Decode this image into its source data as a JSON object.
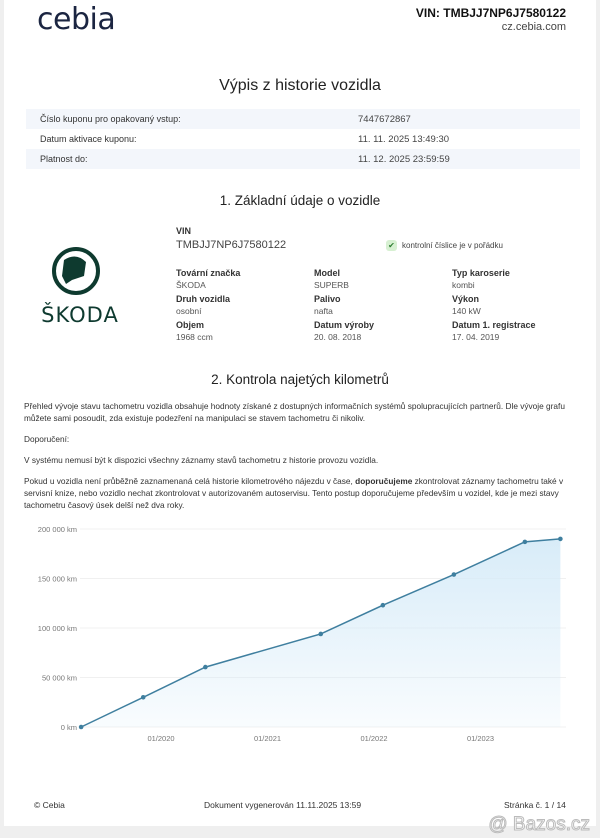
{
  "header": {
    "logo": "cebia",
    "vin": "VIN: TMBJJ7NP6J7580122",
    "site": "cz.cebia.com"
  },
  "title": "Výpis z historie vozidla",
  "coupon": [
    {
      "label": "Číslo kuponu pro opakovaný vstup:",
      "value": "7447672867"
    },
    {
      "label": "Datum aktivace kuponu:",
      "value": "11. 11. 2025 13:49:30"
    },
    {
      "label": "Platnost do:",
      "value": "11. 12. 2025 23:59:59"
    }
  ],
  "section1": {
    "title": "1. Základní údaje o vozidle",
    "brand_logo": "ŠKODA",
    "vin_label": "VIN",
    "vin": "TMBJJ7NP6J7580122",
    "check_text": "kontrolní číslice je v pořádku",
    "check_color": "#4caf50",
    "fields": [
      {
        "label": "Tovární značka",
        "value": "ŠKODA"
      },
      {
        "label": "Model",
        "value": "SUPERB"
      },
      {
        "label": "Typ karoserie",
        "value": "kombi"
      },
      {
        "label": "Druh vozidla",
        "value": "osobní"
      },
      {
        "label": "Palivo",
        "value": "nafta"
      },
      {
        "label": "Výkon",
        "value": "140 kW"
      },
      {
        "label": "Objem",
        "value": "1968 ccm"
      },
      {
        "label": "Datum výroby",
        "value": "20. 08. 2018"
      },
      {
        "label": "Datum 1. registrace",
        "value": "17. 04. 2019"
      }
    ]
  },
  "section2": {
    "title": "2. Kontrola najetých kilometrů",
    "p1": "Přehled vývoje stavu tachometru vozidla obsahuje hodnoty získané z dostupných informačních systémů spolupracujících partnerů. Dle vývoje grafu můžete sami posoudit, zda existuje podezření na manipulaci se stavem tachometru či nikoliv.",
    "rec_label": "Doporučení:",
    "p2": "V systému nemusí být k dispozici všechny záznamy stavů tachometru z historie provozu vozidla.",
    "p3a": "Pokud u vozidla není průběžně zaznamenaná celá historie kilometrového nájezdu v čase, ",
    "p3b": "doporučujeme",
    "p3c": " zkontrolovat záznamy tachometru také v servisní knize, nebo vozidlo nechat zkontrolovat v autorizovaném autoservisu. Tento postup doporučujeme především u vozidel, kde je mezi stavy tachometru časový úsek delší než dva roky."
  },
  "chart_data": {
    "type": "area",
    "x": [
      "2019-04",
      "2019-11",
      "2020-06",
      "2021-07",
      "2022-02",
      "2022-10",
      "2023-06",
      "2023-10"
    ],
    "values": [
      0,
      30000,
      60500,
      94000,
      123000,
      154000,
      187000,
      190000
    ],
    "ylim": [
      0,
      200000
    ],
    "yticks": [
      "0 km",
      "50 000 km",
      "100 000 km",
      "150 000 km",
      "200 000 km"
    ],
    "xticks": [
      "01/2020",
      "01/2021",
      "01/2022",
      "01/2023"
    ],
    "grid": true,
    "line_color": "#3f7f9f",
    "fill_color": "#d6ebf8"
  },
  "footer": {
    "copyright": "© Cebia",
    "generated": "Dokument vygenerován 11.11.2025 13:59",
    "page": "Stránka č. 1 / 14",
    "watermark": "@ Bazos.cz"
  }
}
